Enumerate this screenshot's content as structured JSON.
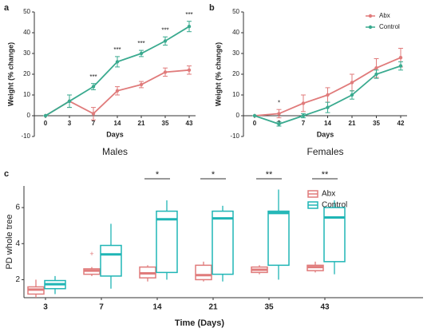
{
  "chart_data": [
    {
      "type": "line",
      "label": "a",
      "subtitle": "Males",
      "xlabel": "Days",
      "ylabel": "Weight (% change)",
      "categories": [
        "0",
        "3",
        "7",
        "14",
        "21",
        "35",
        "43"
      ],
      "ylim": [
        -10,
        50
      ],
      "yticks": [
        -10,
        0,
        10,
        20,
        30,
        40,
        50
      ],
      "series": [
        {
          "name": "Abx",
          "color": "#e07b7b",
          "values": [
            0,
            7,
            1,
            12,
            15,
            21,
            22
          ],
          "errors": [
            0,
            3,
            3,
            2,
            1.5,
            2,
            2
          ]
        },
        {
          "name": "Control",
          "color": "#3aaa8f",
          "values": [
            0,
            7,
            14,
            26,
            30,
            36,
            43
          ],
          "errors": [
            0,
            3,
            1.5,
            2.5,
            1.5,
            2,
            2.5
          ]
        }
      ],
      "annotations": [
        {
          "category": "7",
          "text": "***"
        },
        {
          "category": "14",
          "text": "***"
        },
        {
          "category": "21",
          "text": "***"
        },
        {
          "category": "35",
          "text": "***"
        },
        {
          "category": "43",
          "text": "***"
        }
      ]
    },
    {
      "type": "line",
      "label": "b",
      "subtitle": "Females",
      "xlabel": "Days",
      "ylabel": "Weight (% change)",
      "categories": [
        "0",
        "3",
        "7",
        "14",
        "21",
        "35",
        "42"
      ],
      "ylim": [
        -10,
        50
      ],
      "yticks": [
        -10,
        0,
        10,
        20,
        30,
        40,
        50
      ],
      "legend": "upper right",
      "series": [
        {
          "name": "Abx",
          "color": "#e07b7b",
          "values": [
            0,
            1,
            6,
            10,
            16,
            23,
            28
          ],
          "errors": [
            0,
            2,
            4,
            3.5,
            4,
            4.5,
            4.5
          ]
        },
        {
          "name": "Control",
          "color": "#3aaa8f",
          "values": [
            0,
            -4,
            0,
            4,
            10,
            20,
            24
          ],
          "errors": [
            0,
            1,
            1,
            2.5,
            2,
            2,
            2
          ]
        }
      ],
      "annotations": [
        {
          "category": "3",
          "text": "*"
        }
      ]
    },
    {
      "type": "box",
      "label": "c",
      "xlabel": "Time (Days)",
      "ylabel": "PD whole tree",
      "categories": [
        "3",
        "7",
        "14",
        "21",
        "35",
        "43"
      ],
      "ylim": [
        1,
        7.2
      ],
      "yticks": [
        2,
        4,
        6
      ],
      "legend": "upper right",
      "series": [
        {
          "name": "Abx",
          "color": "#e07b7b",
          "min": [
            1.0,
            2.2,
            1.9,
            1.9,
            2.3,
            2.4
          ],
          "q1": [
            1.2,
            2.3,
            2.1,
            2.0,
            2.4,
            2.5
          ],
          "median": [
            1.45,
            2.5,
            2.35,
            2.25,
            2.55,
            2.7
          ],
          "q3": [
            1.6,
            2.6,
            2.7,
            2.8,
            2.7,
            2.8
          ],
          "max": [
            2.0,
            2.7,
            2.8,
            3.0,
            2.8,
            3.0
          ],
          "outliers": [
            [],
            [
              3.4
            ],
            [],
            [],
            [],
            []
          ]
        },
        {
          "name": "Control",
          "color": "#1fb5b5",
          "min": [
            1.2,
            1.5,
            2.0,
            1.9,
            2.0,
            2.3
          ],
          "q1": [
            1.5,
            2.2,
            2.4,
            2.3,
            2.8,
            3.0
          ],
          "median": [
            1.75,
            3.4,
            5.35,
            5.4,
            5.7,
            5.45
          ],
          "q3": [
            1.95,
            3.9,
            5.8,
            5.8,
            5.8,
            6.0
          ],
          "max": [
            2.2,
            5.1,
            6.4,
            6.1,
            7.0,
            6.4
          ],
          "outliers": [
            [],
            [],
            [],
            [],
            [],
            []
          ]
        }
      ],
      "annotations": [
        {
          "category": "14",
          "text": "*"
        },
        {
          "category": "21",
          "text": "*"
        },
        {
          "category": "35",
          "text": "**"
        },
        {
          "category": "43",
          "text": "**"
        }
      ]
    }
  ]
}
